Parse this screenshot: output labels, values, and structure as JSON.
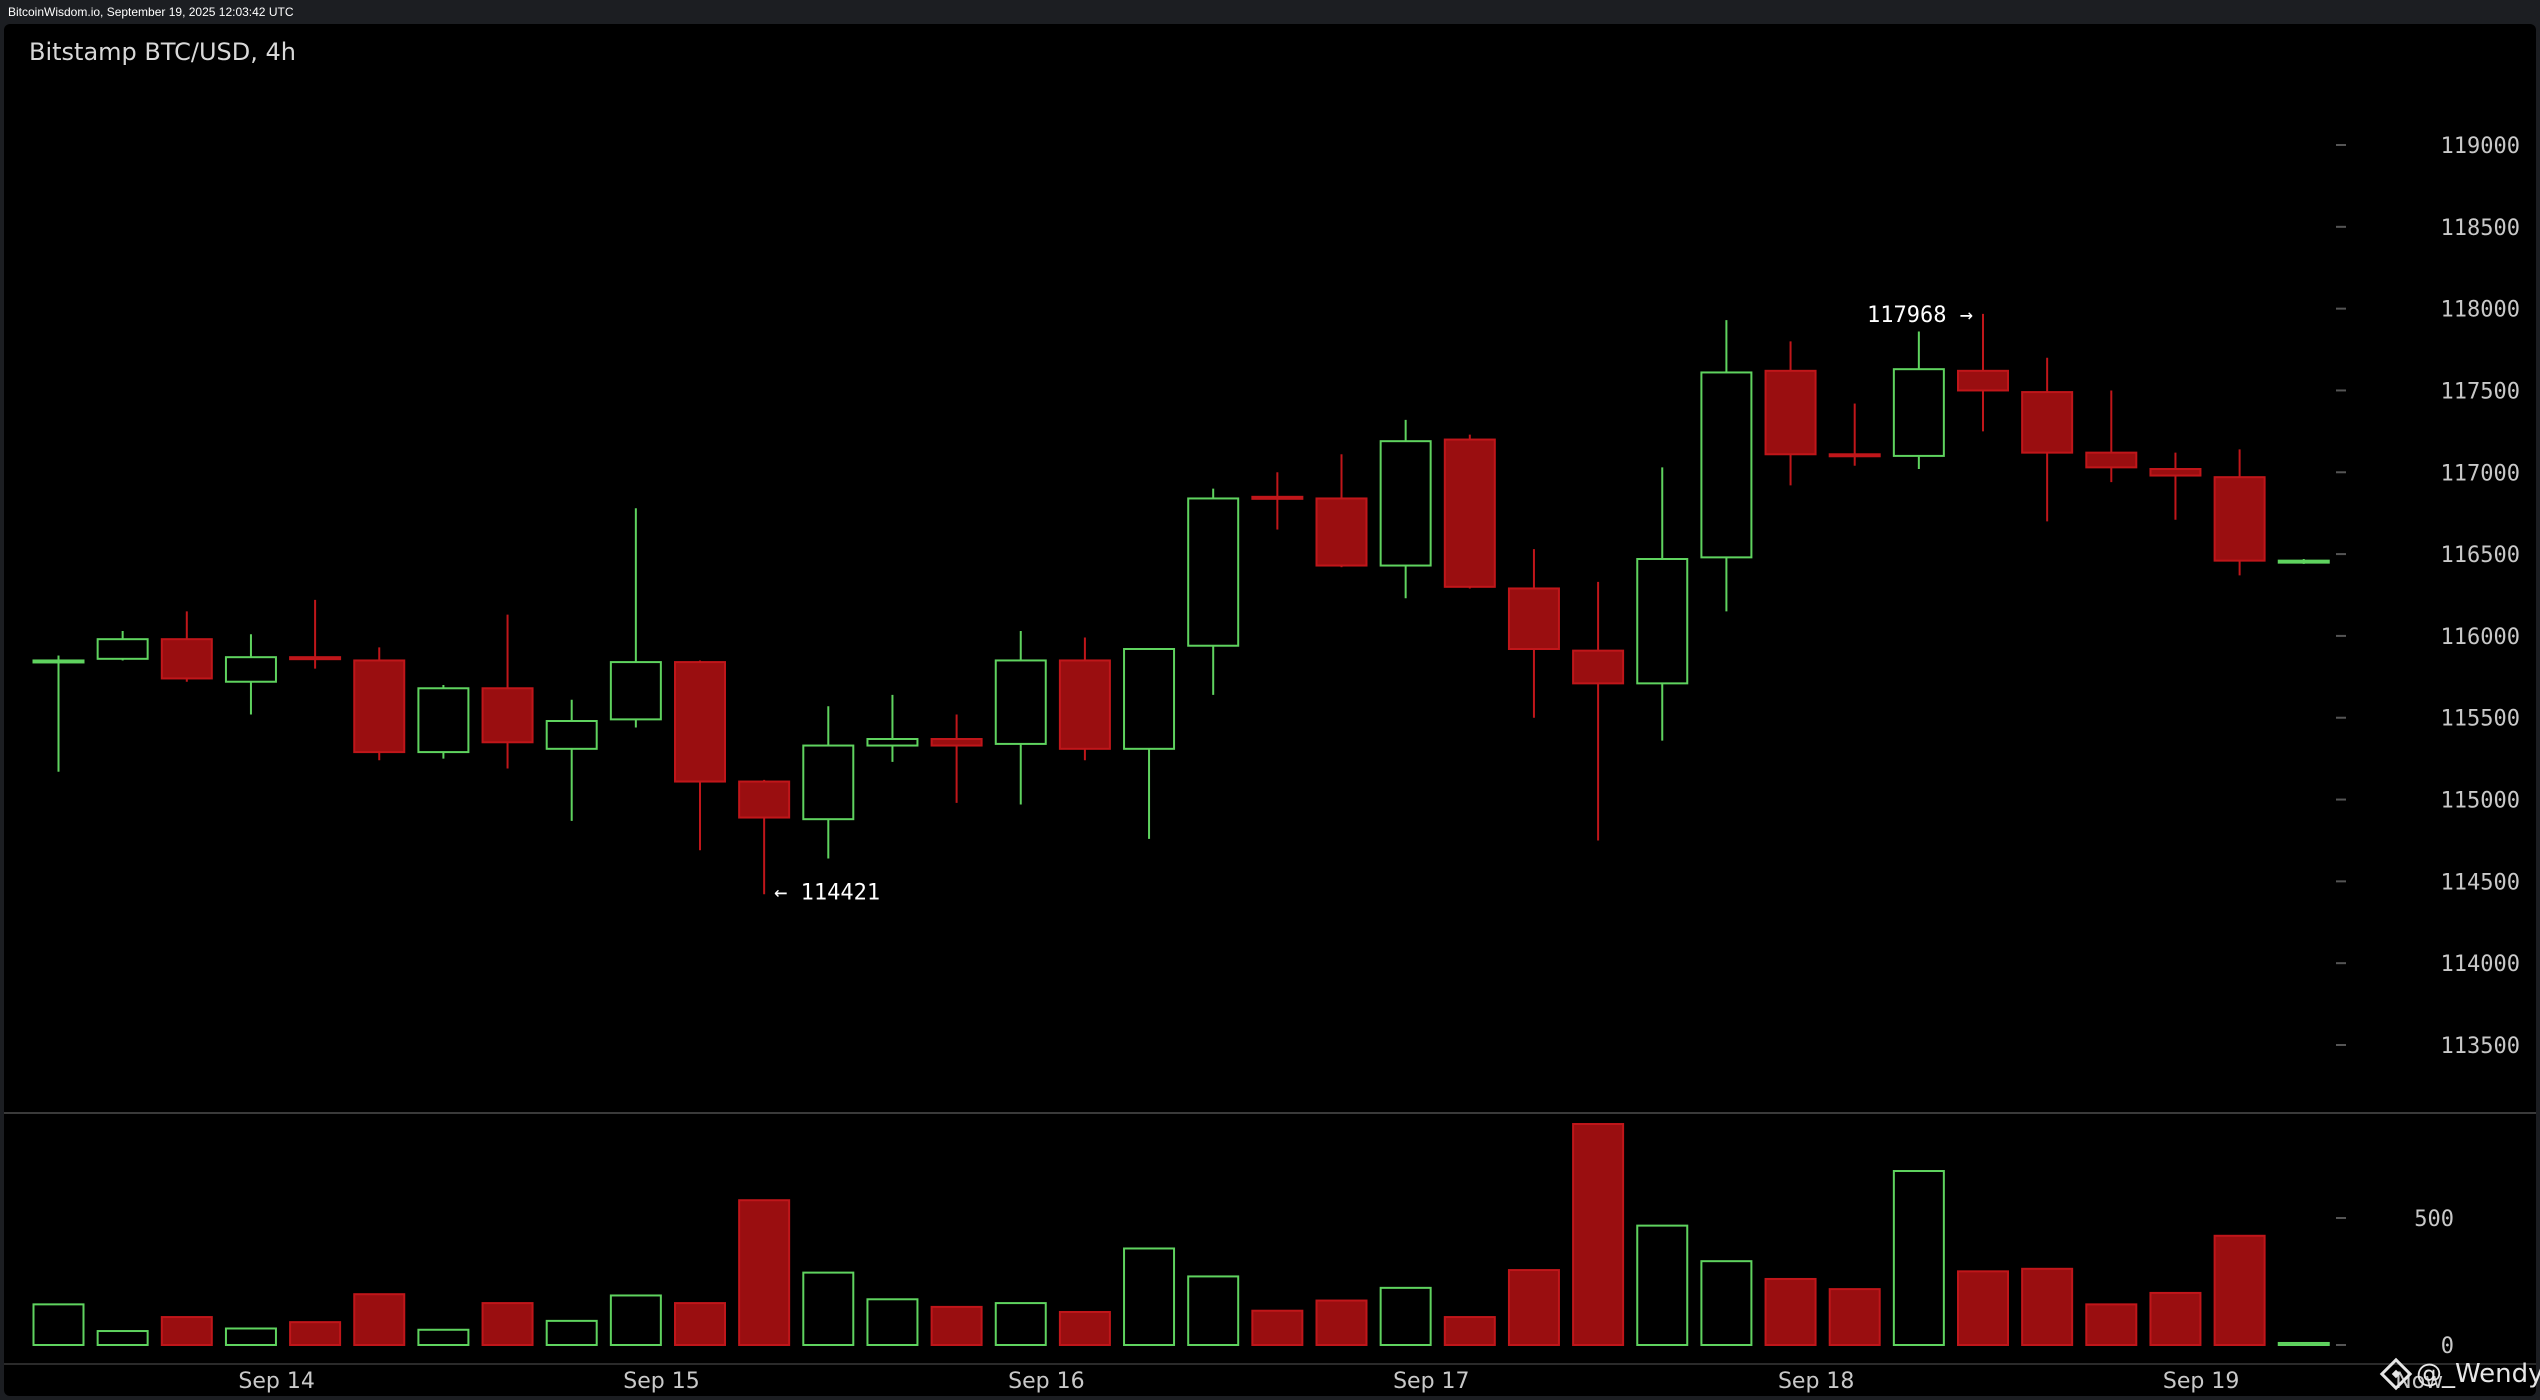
{
  "header": {
    "source_text": "BitcoinWisdom.io, September 19, 2025 12:03:42 UTC"
  },
  "chart_data": {
    "type": "candlestick",
    "title": "Bitstamp BTC/USD, 4h",
    "ylim": [
      113000,
      119800
    ],
    "y_ticks": [
      113500,
      114000,
      114500,
      115000,
      115500,
      116000,
      116500,
      117000,
      117500,
      118000,
      118500,
      119000
    ],
    "volume_ylim": [
      0,
      1000
    ],
    "volume_ticks": [
      0,
      500
    ],
    "date_labels": [
      {
        "label": "Sep 14",
        "index": 3.4
      },
      {
        "label": "Sep 15",
        "index": 9.4
      },
      {
        "label": "Sep 16",
        "index": 15.4
      },
      {
        "label": "Sep 17",
        "index": 21.4
      },
      {
        "label": "Sep 18",
        "index": 27.4
      },
      {
        "label": "Sep 19",
        "index": 33.4
      },
      {
        "label": "Now",
        "index": 36.8
      }
    ],
    "candles": [
      {
        "o": 115840,
        "h": 115880,
        "l": 115170,
        "c": 115850,
        "v": 160
      },
      {
        "o": 115860,
        "h": 116030,
        "l": 115850,
        "c": 115980,
        "v": 55
      },
      {
        "o": 115980,
        "h": 116150,
        "l": 115720,
        "c": 115740,
        "v": 110
      },
      {
        "o": 115720,
        "h": 116010,
        "l": 115520,
        "c": 115870,
        "v": 65
      },
      {
        "o": 115870,
        "h": 116220,
        "l": 115800,
        "c": 115860,
        "v": 90
      },
      {
        "o": 115850,
        "h": 115930,
        "l": 115240,
        "c": 115290,
        "v": 200
      },
      {
        "o": 115290,
        "h": 115700,
        "l": 115250,
        "c": 115680,
        "v": 60
      },
      {
        "o": 115680,
        "h": 116130,
        "l": 115190,
        "c": 115350,
        "v": 165
      },
      {
        "o": 115310,
        "h": 115610,
        "l": 114870,
        "c": 115480,
        "v": 95
      },
      {
        "o": 115490,
        "h": 116780,
        "l": 115440,
        "c": 115840,
        "v": 195
      },
      {
        "o": 115840,
        "h": 115850,
        "l": 114690,
        "c": 115110,
        "v": 165
      },
      {
        "o": 115110,
        "h": 115120,
        "l": 114421,
        "c": 114890,
        "v": 570
      },
      {
        "o": 114880,
        "h": 115570,
        "l": 114640,
        "c": 115330,
        "v": 285
      },
      {
        "o": 115330,
        "h": 115640,
        "l": 115230,
        "c": 115370,
        "v": 180
      },
      {
        "o": 115370,
        "h": 115520,
        "l": 114980,
        "c": 115330,
        "v": 150
      },
      {
        "o": 115340,
        "h": 116030,
        "l": 114970,
        "c": 115850,
        "v": 165
      },
      {
        "o": 115850,
        "h": 115990,
        "l": 115240,
        "c": 115310,
        "v": 130
      },
      {
        "o": 115310,
        "h": 115920,
        "l": 114760,
        "c": 115920,
        "v": 380
      },
      {
        "o": 115940,
        "h": 116900,
        "l": 115640,
        "c": 116840,
        "v": 270
      },
      {
        "o": 116850,
        "h": 117000,
        "l": 116650,
        "c": 116840,
        "v": 135
      },
      {
        "o": 116840,
        "h": 117110,
        "l": 116420,
        "c": 116430,
        "v": 175
      },
      {
        "o": 116430,
        "h": 117320,
        "l": 116230,
        "c": 117190,
        "v": 225
      },
      {
        "o": 117200,
        "h": 117230,
        "l": 116290,
        "c": 116300,
        "v": 110
      },
      {
        "o": 116290,
        "h": 116530,
        "l": 115500,
        "c": 115920,
        "v": 295
      },
      {
        "o": 115910,
        "h": 116330,
        "l": 114750,
        "c": 115710,
        "v": 870
      },
      {
        "o": 115710,
        "h": 117030,
        "l": 115360,
        "c": 116470,
        "v": 470
      },
      {
        "o": 116480,
        "h": 117930,
        "l": 116150,
        "c": 117610,
        "v": 330
      },
      {
        "o": 117620,
        "h": 117800,
        "l": 116920,
        "c": 117110,
        "v": 260
      },
      {
        "o": 117110,
        "h": 117420,
        "l": 117040,
        "c": 117100,
        "v": 220
      },
      {
        "o": 117100,
        "h": 117860,
        "l": 117020,
        "c": 117630,
        "v": 685
      },
      {
        "o": 117620,
        "h": 117968,
        "l": 117250,
        "c": 117500,
        "v": 290
      },
      {
        "o": 117490,
        "h": 117700,
        "l": 116700,
        "c": 117120,
        "v": 300
      },
      {
        "o": 117120,
        "h": 117500,
        "l": 116940,
        "c": 117030,
        "v": 160
      },
      {
        "o": 117020,
        "h": 117120,
        "l": 116710,
        "c": 116980,
        "v": 205
      },
      {
        "o": 116970,
        "h": 117140,
        "l": 116370,
        "c": 116460,
        "v": 430
      },
      {
        "o": 116450,
        "h": 116470,
        "l": 116440,
        "c": 116460,
        "v": 8
      }
    ],
    "annotations": [
      {
        "text": "← 114421",
        "index": 11,
        "price": 114421,
        "side": "right"
      },
      {
        "text": "117968 →",
        "index": 30,
        "price": 117968,
        "side": "left"
      }
    ],
    "colors": {
      "up": "#5fd35f",
      "down": "#c0161a",
      "down_fill": "#9a0e10",
      "background": "#000000"
    }
  },
  "watermark": {
    "icon": "binance-diamond-icon",
    "text": "@_Wendy"
  }
}
